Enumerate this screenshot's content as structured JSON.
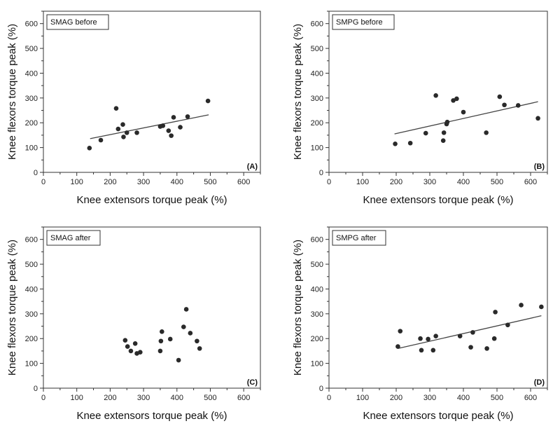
{
  "chart_data": [
    {
      "type": "scatter",
      "panel": "(A)",
      "legend": "SMAG before",
      "xlabel": "Knee extensors torque peak (%)",
      "ylabel": "Knee flexors torque peak (%)",
      "xlim": [
        0,
        650
      ],
      "ylim": [
        0,
        650
      ],
      "xticks": [
        "0",
        "100",
        "200",
        "300",
        "400",
        "500",
        "600"
      ],
      "yticks": [
        "0",
        "100",
        "200",
        "300",
        "400",
        "500",
        "600"
      ],
      "grid": false,
      "points": [
        [
          138,
          98
        ],
        [
          172,
          130
        ],
        [
          218,
          258
        ],
        [
          224,
          175
        ],
        [
          238,
          193
        ],
        [
          240,
          143
        ],
        [
          250,
          160
        ],
        [
          280,
          160
        ],
        [
          350,
          185
        ],
        [
          358,
          188
        ],
        [
          375,
          168
        ],
        [
          383,
          148
        ],
        [
          390,
          222
        ],
        [
          410,
          182
        ],
        [
          432,
          225
        ],
        [
          493,
          288
        ]
      ],
      "trendline": [
        [
          140,
          136
        ],
        [
          495,
          232
        ]
      ]
    },
    {
      "type": "scatter",
      "panel": "(B)",
      "legend": "SMPG before",
      "xlabel": "Knee extensors torque peak (%)",
      "ylabel": "Knee flexors torque peak (%)",
      "xlim": [
        0,
        650
      ],
      "ylim": [
        0,
        650
      ],
      "xticks": [
        "0",
        "100",
        "200",
        "300",
        "400",
        "500",
        "600"
      ],
      "yticks": [
        "0",
        "100",
        "200",
        "300",
        "400",
        "500",
        "600"
      ],
      "grid": false,
      "points": [
        [
          197,
          115
        ],
        [
          242,
          118
        ],
        [
          288,
          158
        ],
        [
          318,
          310
        ],
        [
          340,
          128
        ],
        [
          342,
          160
        ],
        [
          350,
          195
        ],
        [
          352,
          203
        ],
        [
          370,
          290
        ],
        [
          380,
          297
        ],
        [
          400,
          243
        ],
        [
          468,
          160
        ],
        [
          508,
          305
        ],
        [
          522,
          272
        ],
        [
          563,
          270
        ],
        [
          622,
          218
        ]
      ],
      "trendline": [
        [
          195,
          155
        ],
        [
          622,
          285
        ]
      ]
    },
    {
      "type": "scatter",
      "panel": "(C)",
      "legend": "SMAG after",
      "xlabel": "Knee extensors torque peak (%)",
      "ylabel": "Knee flexors torque peak (%)",
      "xlim": [
        0,
        650
      ],
      "ylim": [
        0,
        650
      ],
      "xticks": [
        "0",
        "100",
        "200",
        "300",
        "400",
        "500",
        "600"
      ],
      "yticks": [
        "0",
        "100",
        "200",
        "300",
        "400",
        "500",
        "600"
      ],
      "grid": false,
      "points": [
        [
          245,
          193
        ],
        [
          252,
          168
        ],
        [
          262,
          150
        ],
        [
          275,
          180
        ],
        [
          280,
          140
        ],
        [
          290,
          145
        ],
        [
          350,
          150
        ],
        [
          352,
          190
        ],
        [
          355,
          228
        ],
        [
          380,
          198
        ],
        [
          405,
          113
        ],
        [
          420,
          247
        ],
        [
          428,
          318
        ],
        [
          440,
          222
        ],
        [
          460,
          190
        ],
        [
          468,
          160
        ]
      ]
    },
    {
      "type": "scatter",
      "panel": "(D)",
      "legend": "SMPG after",
      "xlabel": "Knee extensors torque peak (%)",
      "ylabel": "Knee flexors torque peak (%)",
      "xlim": [
        0,
        650
      ],
      "ylim": [
        0,
        650
      ],
      "xticks": [
        "0",
        "100",
        "200",
        "300",
        "400",
        "500",
        "600"
      ],
      "yticks": [
        "0",
        "100",
        "200",
        "300",
        "400",
        "500",
        "600"
      ],
      "grid": false,
      "points": [
        [
          205,
          168
        ],
        [
          212,
          230
        ],
        [
          272,
          200
        ],
        [
          275,
          153
        ],
        [
          295,
          198
        ],
        [
          310,
          153
        ],
        [
          318,
          210
        ],
        [
          390,
          210
        ],
        [
          422,
          165
        ],
        [
          428,
          225
        ],
        [
          470,
          160
        ],
        [
          492,
          200
        ],
        [
          495,
          307
        ],
        [
          532,
          255
        ],
        [
          572,
          335
        ],
        [
          632,
          328
        ]
      ],
      "trendline": [
        [
          205,
          160
        ],
        [
          632,
          292
        ]
      ]
    }
  ]
}
